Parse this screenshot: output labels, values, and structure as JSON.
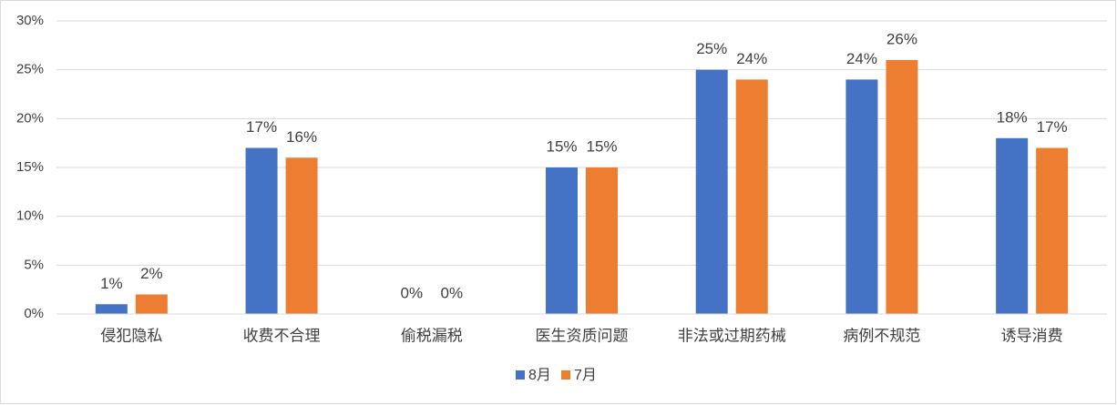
{
  "chart_data": {
    "type": "bar",
    "categories": [
      "侵犯隐私",
      "收费不合理",
      "偷税漏税",
      "医生资质问题",
      "非法或过期药械",
      "病例不规范",
      "诱导消费"
    ],
    "series": [
      {
        "name": "8月",
        "color": "#4472c4",
        "values": [
          1,
          17,
          0,
          15,
          25,
          24,
          18
        ],
        "value_labels": [
          "1%",
          "17%",
          "0%",
          "15%",
          "25%",
          "24%",
          "18%"
        ]
      },
      {
        "name": "7月",
        "color": "#ed7d31",
        "values": [
          2,
          16,
          0,
          15,
          24,
          26,
          17
        ],
        "value_labels": [
          "2%",
          "16%",
          "0%",
          "15%",
          "24%",
          "26%",
          "17%"
        ]
      }
    ],
    "ylim": [
      0,
      30
    ],
    "yticks": [
      {
        "value": 0,
        "label": "0%"
      },
      {
        "value": 5,
        "label": "5%"
      },
      {
        "value": 10,
        "label": "10%"
      },
      {
        "value": 15,
        "label": "15%"
      },
      {
        "value": 20,
        "label": "20%"
      },
      {
        "value": 25,
        "label": "25%"
      },
      {
        "value": 30,
        "label": "30%"
      }
    ],
    "grid": true,
    "legend": "bottom"
  }
}
